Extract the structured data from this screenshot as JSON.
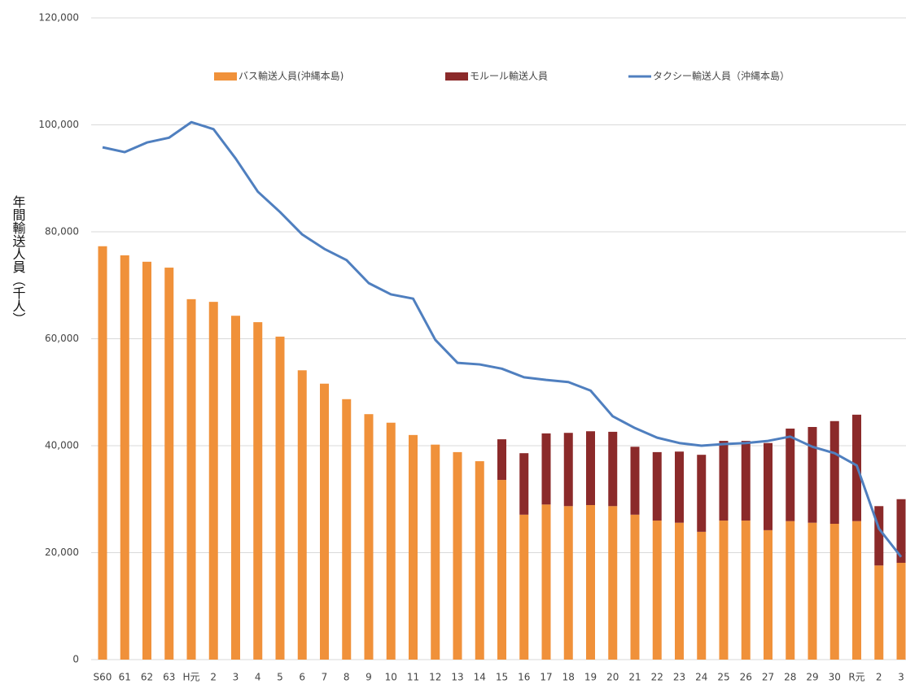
{
  "chart_data": {
    "type": "stacked_bar_line",
    "y_label": "年間輸送人員（千人）",
    "categories": [
      "S60",
      "61",
      "62",
      "63",
      "H元",
      "2",
      "3",
      "4",
      "5",
      "6",
      "7",
      "8",
      "9",
      "10",
      "11",
      "12",
      "13",
      "14",
      "15",
      "16",
      "17",
      "18",
      "19",
      "20",
      "21",
      "22",
      "23",
      "24",
      "25",
      "26",
      "27",
      "28",
      "29",
      "30",
      "R元",
      "2",
      "3"
    ],
    "series": [
      {
        "name": "バス輸送人員(沖縄本島)",
        "color": "#f0913a",
        "kind": "bar",
        "values": [
          77300,
          75600,
          74400,
          73300,
          67400,
          66900,
          64300,
          63100,
          60400,
          54100,
          51600,
          48700,
          45900,
          44300,
          42000,
          40200,
          38800,
          37100,
          33600,
          27100,
          29000,
          28700,
          28900,
          28700,
          27100,
          26000,
          25600,
          23900,
          26000,
          26000,
          24200,
          25900,
          25600,
          25400,
          25900,
          17600,
          18100
        ]
      },
      {
        "name": "モルール輸送人員",
        "color": "#8b2a2a",
        "kind": "bar",
        "values": [
          null,
          null,
          null,
          null,
          null,
          null,
          null,
          null,
          null,
          null,
          null,
          null,
          null,
          null,
          null,
          null,
          null,
          null,
          7600,
          11500,
          13300,
          13700,
          13800,
          13900,
          12700,
          12800,
          13300,
          14400,
          14900,
          14900,
          16300,
          17300,
          17900,
          19200,
          19900,
          11100,
          11900
        ]
      },
      {
        "name": "タクシー輸送人員（沖縄本島）",
        "color": "#4f7fbf",
        "kind": "line",
        "values": [
          95800,
          94900,
          96700,
          97600,
          100500,
          99200,
          93700,
          87500,
          83700,
          79500,
          76800,
          74700,
          70400,
          68300,
          67500,
          59800,
          55500,
          55200,
          54400,
          52800,
          52300,
          51900,
          50300,
          45500,
          43300,
          41500,
          40500,
          40000,
          40300,
          40500,
          40900,
          41700,
          39800,
          38600,
          36300,
          24500,
          19200
        ]
      }
    ],
    "ylim": [
      0,
      120000
    ],
    "yticks": [
      0,
      {
        "value": 20000,
        "label": "20,000"
      },
      {
        "value": 40000,
        "label": "40,000"
      },
      {
        "value": 60000,
        "label": "60,000"
      },
      {
        "value": 80000,
        "label": "80,000"
      },
      {
        "value": 100000,
        "label": "100,000"
      },
      {
        "value": 120000,
        "label": "120,000"
      }
    ],
    "grid": true,
    "legend": "top"
  }
}
